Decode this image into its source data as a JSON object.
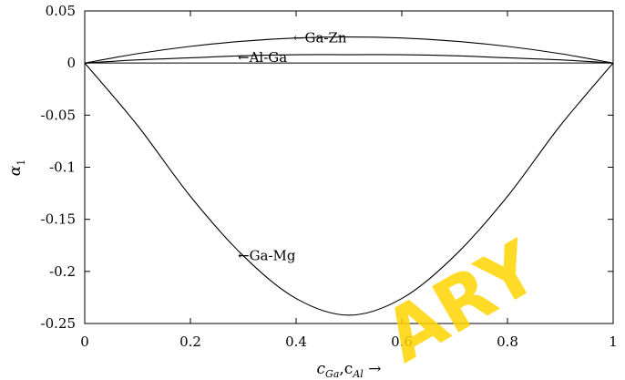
{
  "chart_data": {
    "type": "line",
    "xlabel": "c_Ga,c_Al →",
    "ylabel": "α1",
    "xlim": [
      0,
      1
    ],
    "ylim": [
      -0.25,
      0.05
    ],
    "x_ticks": [
      "0",
      "0.2",
      "0.4",
      "0.6",
      "0.8",
      "1"
    ],
    "y_ticks": [
      "0.05",
      "0",
      "-0.05",
      "-0.1",
      "-0.15",
      "-0.2",
      "-0.25"
    ],
    "grid": false,
    "legend": "none",
    "series": [
      {
        "name": "Ga-Zn",
        "x": [
          0,
          0.1,
          0.2,
          0.3,
          0.4,
          0.5,
          0.6,
          0.7,
          0.8,
          0.9,
          1.0
        ],
        "y": [
          0,
          0.009,
          0.016,
          0.021,
          0.024,
          0.025,
          0.024,
          0.021,
          0.016,
          0.009,
          0
        ]
      },
      {
        "name": "Al-Ga",
        "x": [
          0,
          0.1,
          0.2,
          0.3,
          0.4,
          0.5,
          0.6,
          0.7,
          0.8,
          0.9,
          1.0
        ],
        "y": [
          0,
          0.003,
          0.005,
          0.007,
          0.008,
          0.008,
          0.008,
          0.007,
          0.005,
          0.003,
          0
        ]
      },
      {
        "name": "Ga-Mg",
        "x": [
          0,
          0.1,
          0.2,
          0.3,
          0.4,
          0.5,
          0.6,
          0.7,
          0.8,
          0.9,
          1.0
        ],
        "y": [
          0,
          -0.06,
          -0.128,
          -0.185,
          -0.226,
          -0.242,
          -0.226,
          -0.185,
          -0.128,
          -0.06,
          0
        ]
      }
    ],
    "annotations": [
      {
        "text": "←Ga-Zn",
        "x": 0.405,
        "y": 0.024
      },
      {
        "text": "←Al-Ga",
        "x": 0.3,
        "y": 0.0055
      },
      {
        "text": "←Ga-Mg",
        "x": 0.3,
        "y": -0.185
      }
    ],
    "watermark": "ARY"
  }
}
